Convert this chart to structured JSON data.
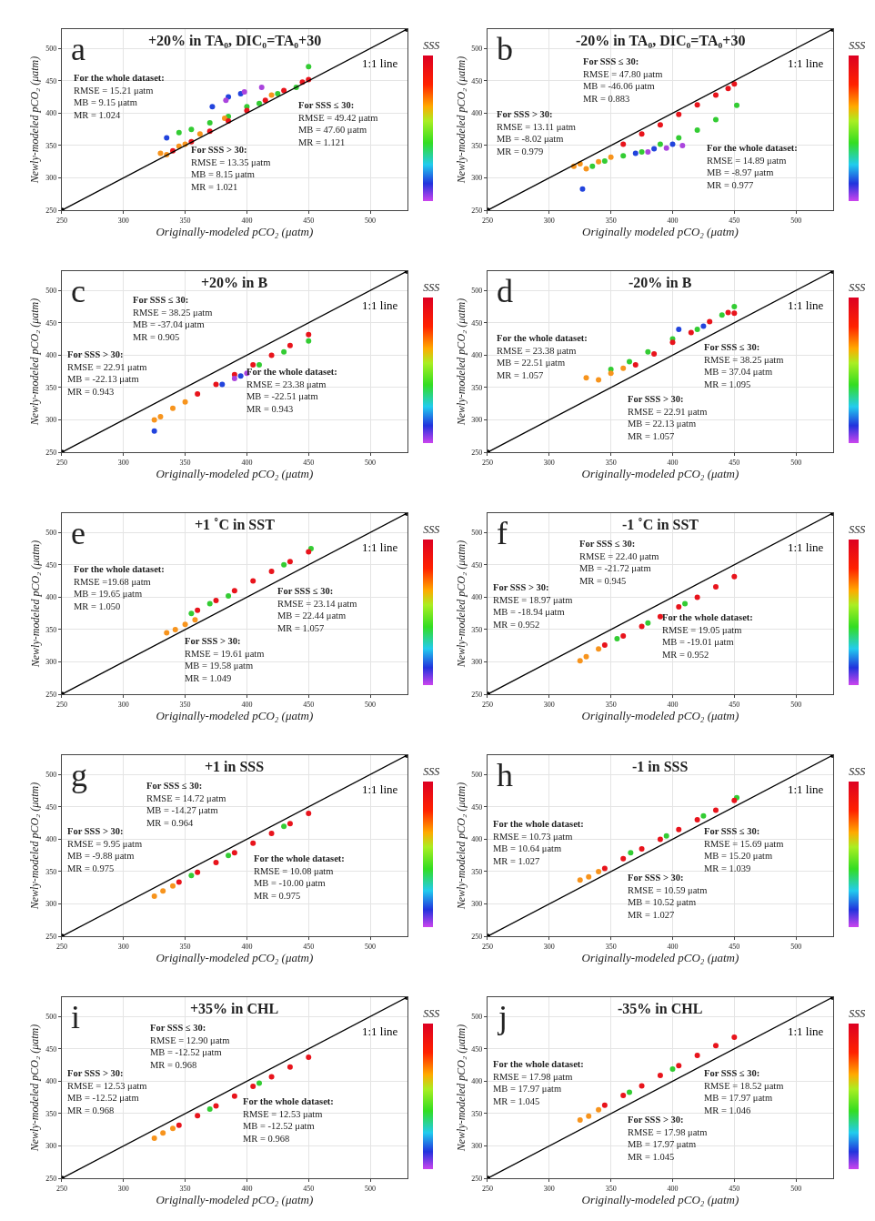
{
  "chart_data": [
    {
      "type": "scatter",
      "title": "+20% in TA₀, DIC₀=TA₀+30",
      "xlabel": "Originally-modeled pCO₂ (μatm)",
      "ylabel": "Newly-modeled pCO₂ (μatm)",
      "clabel": "SSS",
      "xlim": [
        250,
        530
      ],
      "ylim": [
        250,
        530
      ],
      "xticks": [
        250,
        300,
        350,
        400,
        450,
        500
      ],
      "yticks": [
        250,
        300,
        350,
        400,
        450,
        500
      ],
      "grid": true,
      "marker": "circle",
      "annotations": [
        "a",
        "For the whole dataset:\nRMSE = 15.21 μatm\nMB = 9.15 μatm\nMR = 1.024",
        "For SSS ≤ 30:\nRMSE = 49.42 μatm\nMB = 47.60 μatm\nMR = 1.121",
        "For SSS > 30:\nRMSE = 13.35 μatm\nMB = 8.15 μatm\nMR = 1.021"
      ],
      "series": [
        {
          "color": "#33cc33",
          "x": [
            345,
            355,
            370,
            385,
            400,
            410,
            425,
            440,
            450
          ],
          "values": [
            370,
            375,
            385,
            395,
            410,
            415,
            430,
            440,
            472
          ]
        },
        {
          "color": "#f7941d",
          "x": [
            330,
            335,
            345,
            350,
            362,
            382,
            420
          ],
          "values": [
            338,
            336,
            349,
            352,
            368,
            392,
            428
          ]
        },
        {
          "color": "#e8141c",
          "x": [
            340,
            355,
            370,
            385,
            400,
            415,
            430,
            445,
            450
          ],
          "values": [
            342,
            356,
            372,
            388,
            404,
            420,
            435,
            448,
            452
          ]
        },
        {
          "color": "#2244dd",
          "x": [
            335,
            372,
            385,
            395
          ],
          "values": [
            362,
            410,
            425,
            430
          ]
        },
        {
          "color": "#aa44dd",
          "x": [
            383,
            398,
            412
          ],
          "values": [
            420,
            433,
            440
          ]
        },
        {
          "type": "line",
          "name": "1:1 line",
          "color": "#000000",
          "x": [
            250,
            530
          ],
          "values": [
            250,
            530
          ]
        }
      ]
    },
    {
      "type": "scatter",
      "title": "-20% in TA₀, DIC₀=TA₀+30",
      "xlabel": "Originally modeled pCO₂ (μatm)",
      "ylabel": "Newly-modeled pCO₂ (μatm)",
      "clabel": "SSS",
      "xlim": [
        250,
        530
      ],
      "ylim": [
        250,
        530
      ],
      "xticks": [
        250,
        300,
        350,
        400,
        450,
        500
      ],
      "yticks": [
        250,
        300,
        350,
        400,
        450,
        500
      ],
      "grid": true,
      "marker": "circle",
      "annotations": [
        "b",
        "For SSS ≤ 30:\nRMSE = 47.80 μatm\nMB = -46.06 μatm\nMR = 0.883",
        "For SSS > 30:\nRMSE = 13.11 μatm\nMB = -8.02 μatm\nMR = 0.979",
        "For the whole dataset:\nRMSE = 14.89 μatm\nMB = -8.97 μatm\nMR = 0.977"
      ],
      "series": [
        {
          "color": "#33cc33",
          "x": [
            335,
            345,
            360,
            375,
            390,
            405,
            420,
            435,
            452
          ],
          "values": [
            318,
            326,
            334,
            340,
            352,
            362,
            374,
            390,
            412
          ]
        },
        {
          "color": "#f7941d",
          "x": [
            320,
            325,
            330,
            340,
            350
          ],
          "values": [
            318,
            322,
            314,
            325,
            332
          ]
        },
        {
          "color": "#e8141c",
          "x": [
            360,
            375,
            390,
            405,
            420,
            435,
            445,
            450
          ],
          "values": [
            352,
            368,
            382,
            398,
            413,
            428,
            438,
            445
          ]
        },
        {
          "color": "#2244dd",
          "x": [
            327,
            370,
            385,
            400
          ],
          "values": [
            283,
            338,
            345,
            352
          ]
        },
        {
          "color": "#aa44dd",
          "x": [
            380,
            395,
            408
          ],
          "values": [
            340,
            346,
            350
          ]
        },
        {
          "type": "line",
          "name": "1:1 line",
          "color": "#000000",
          "x": [
            250,
            530
          ],
          "values": [
            250,
            530
          ]
        }
      ]
    },
    {
      "type": "scatter",
      "title": "+20% in B",
      "xlabel": "Originally-modeled pCO₂ (μatm)",
      "ylabel": "Newly-modeled pCO₂ (μatm)",
      "clabel": "SSS",
      "xlim": [
        250,
        530
      ],
      "ylim": [
        250,
        530
      ],
      "xticks": [
        250,
        300,
        350,
        400,
        450,
        500
      ],
      "yticks": [
        250,
        300,
        350,
        400,
        450,
        500
      ],
      "grid": true,
      "marker": "circle",
      "annotations": [
        "c",
        "For SSS ≤ 30:\nRMSE = 38.25 μatm\nMB = -37.04 μatm\nMR = 0.905",
        "For SSS > 30:\nRMSE = 22.91 μatm\nMB = -22.13 μatm\nMR = 0.943",
        "For the whole dataset:\nRMSE = 23.38 μatm\nMB = -22.51 μatm\nMR = 0.943"
      ],
      "series": [
        {
          "color": "#33cc33",
          "x": [
            410,
            430,
            450
          ],
          "values": [
            385,
            405,
            422
          ]
        },
        {
          "color": "#f7941d",
          "x": [
            325,
            330,
            340,
            350
          ],
          "values": [
            300,
            305,
            318,
            328
          ]
        },
        {
          "color": "#e8141c",
          "x": [
            360,
            375,
            390,
            405,
            420,
            435,
            450
          ],
          "values": [
            340,
            355,
            370,
            385,
            400,
            415,
            432
          ]
        },
        {
          "color": "#2244dd",
          "x": [
            325,
            380,
            395
          ],
          "values": [
            283,
            355,
            368
          ]
        },
        {
          "color": "#aa44dd",
          "x": [
            390,
            400
          ],
          "values": [
            364,
            372
          ]
        },
        {
          "type": "line",
          "name": "1:1 line",
          "color": "#000000",
          "x": [
            250,
            530
          ],
          "values": [
            250,
            530
          ]
        }
      ]
    },
    {
      "type": "scatter",
      "title": "-20% in B",
      "xlabel": "Originally-modeled pCO₂ (μatm)",
      "ylabel": "Newly-modeled pCO₂ (μatm)",
      "clabel": "SSS",
      "xlim": [
        250,
        530
      ],
      "ylim": [
        250,
        530
      ],
      "xticks": [
        250,
        300,
        350,
        400,
        450,
        500
      ],
      "yticks": [
        250,
        300,
        350,
        400,
        450,
        500
      ],
      "grid": true,
      "marker": "circle",
      "annotations": [
        "d",
        "For the whole dataset:\nRMSE = 23.38 μatm\nMB = 22.51 μatm\nMR = 1.057",
        "For SSS ≤ 30:\nRMSE = 38.25 μatm\nMB = 37.04 μatm\nMR = 1.095",
        "For SSS > 30:\nRMSE = 22.91 μatm\nMB = 22.13 μatm\nMR = 1.057"
      ],
      "series": [
        {
          "color": "#33cc33",
          "x": [
            350,
            365,
            380,
            400,
            420,
            440,
            450
          ],
          "values": [
            378,
            390,
            405,
            425,
            440,
            462,
            475
          ]
        },
        {
          "color": "#f7941d",
          "x": [
            330,
            340,
            350,
            360
          ],
          "values": [
            365,
            362,
            372,
            380
          ]
        },
        {
          "color": "#e8141c",
          "x": [
            370,
            385,
            400,
            415,
            430,
            445,
            450
          ],
          "values": [
            385,
            402,
            420,
            435,
            452,
            466,
            465
          ]
        },
        {
          "color": "#2244dd",
          "x": [
            405,
            425
          ],
          "values": [
            440,
            445
          ]
        },
        {
          "type": "line",
          "name": "1:1 line",
          "color": "#000000",
          "x": [
            250,
            530
          ],
          "values": [
            250,
            530
          ]
        }
      ]
    },
    {
      "type": "scatter",
      "title": "+1 ˚C in SST",
      "xlabel": "Originally-modeled pCO₂ (μatm)",
      "ylabel": "Newly-modeled pCO₂ (μatm)",
      "clabel": "SSS",
      "xlim": [
        250,
        530
      ],
      "ylim": [
        250,
        530
      ],
      "xticks": [
        250,
        300,
        350,
        400,
        450,
        500
      ],
      "yticks": [
        250,
        300,
        350,
        400,
        450,
        500
      ],
      "grid": true,
      "marker": "circle",
      "annotations": [
        "e",
        "For the whole dataset:\nRMSE =19.68 μatm\nMB = 19.65 μatm\nMR = 1.050",
        "For SSS ≤ 30:\nRMSE = 23.14 μatm\nMB = 22.44 μatm\nMR = 1.057",
        "For SSS > 30:\nRMSE = 19.61 μatm\nMB = 19.58 μatm\nMR = 1.049"
      ],
      "series": [
        {
          "color": "#33cc33",
          "x": [
            355,
            370,
            385,
            430,
            452
          ],
          "values": [
            375,
            390,
            402,
            450,
            475
          ]
        },
        {
          "color": "#f7941d",
          "x": [
            335,
            342,
            350,
            358
          ],
          "values": [
            345,
            350,
            358,
            365
          ]
        },
        {
          "color": "#e8141c",
          "x": [
            360,
            375,
            390,
            405,
            420,
            435,
            450
          ],
          "values": [
            380,
            395,
            410,
            425,
            440,
            455,
            470
          ]
        },
        {
          "type": "line",
          "name": "1:1 line",
          "color": "#000000",
          "x": [
            250,
            530
          ],
          "values": [
            250,
            530
          ]
        }
      ]
    },
    {
      "type": "scatter",
      "title": "-1 ˚C in SST",
      "xlabel": "Originally-modeled pCO₂ (μatm)",
      "ylabel": "Newly-modeled pCO₂ (μatm)",
      "clabel": "SSS",
      "xlim": [
        250,
        530
      ],
      "ylim": [
        250,
        530
      ],
      "xticks": [
        250,
        300,
        350,
        400,
        450,
        500
      ],
      "yticks": [
        250,
        300,
        350,
        400,
        450,
        500
      ],
      "grid": true,
      "marker": "circle",
      "annotations": [
        "f",
        "For SSS ≤ 30:\nRMSE = 22.40 μatm\nMB = -21.72 μatm\nMR = 0.945",
        "For SSS > 30:\nRMSE = 18.97 μatm\nMB = -18.94 μatm\nMR = 0.952",
        "For the whole dataset:\nRMSE = 19.05 μatm\nMB = -19.01 μatm\nMR = 0.952"
      ],
      "series": [
        {
          "color": "#33cc33",
          "x": [
            355,
            380,
            410
          ],
          "values": [
            336,
            360,
            390
          ]
        },
        {
          "color": "#f7941d",
          "x": [
            325,
            330,
            340
          ],
          "values": [
            302,
            308,
            320
          ]
        },
        {
          "color": "#e8141c",
          "x": [
            345,
            360,
            375,
            390,
            405,
            420,
            435,
            450
          ],
          "values": [
            326,
            340,
            355,
            370,
            385,
            400,
            416,
            432
          ]
        },
        {
          "type": "line",
          "name": "1:1 line",
          "color": "#000000",
          "x": [
            250,
            530
          ],
          "values": [
            250,
            530
          ]
        }
      ]
    },
    {
      "type": "scatter",
      "title": "+1 in SSS",
      "xlabel": "Originally-modeled pCO₂ (μatm)",
      "ylabel": "Newly-modeled pCO₂ (μatm)",
      "clabel": "SSS",
      "xlim": [
        250,
        530
      ],
      "ylim": [
        250,
        530
      ],
      "xticks": [
        250,
        300,
        350,
        400,
        450,
        500
      ],
      "yticks": [
        250,
        300,
        350,
        400,
        450,
        500
      ],
      "grid": true,
      "marker": "circle",
      "annotations": [
        "g",
        "For SSS ≤ 30:\nRMSE = 14.72 μatm\nMB = -14.27 μatm\nMR = 0.964",
        "For SSS > 30:\nRMSE = 9.95 μatm\nMB = -9.88 μatm\nMR = 0.975",
        "For the whole dataset:\nRMSE = 10.08 μatm\nMB = -10.00 μatm\nMR = 0.975"
      ],
      "series": [
        {
          "color": "#33cc33",
          "x": [
            355,
            385,
            430
          ],
          "values": [
            344,
            375,
            420
          ]
        },
        {
          "color": "#f7941d",
          "x": [
            325,
            332,
            340
          ],
          "values": [
            312,
            320,
            328
          ]
        },
        {
          "color": "#e8141c",
          "x": [
            345,
            360,
            375,
            390,
            405,
            420,
            435,
            450
          ],
          "values": [
            334,
            349,
            364,
            379,
            394,
            409,
            424,
            440
          ]
        },
        {
          "type": "line",
          "name": "1:1 line",
          "color": "#000000",
          "x": [
            250,
            530
          ],
          "values": [
            250,
            530
          ]
        }
      ]
    },
    {
      "type": "scatter",
      "title": "-1 in SSS",
      "xlabel": "Originally-modeled pCO₂ (μatm)",
      "ylabel": "Newly-modeled pCO₂ (μatm)",
      "clabel": "SSS",
      "xlim": [
        250,
        530
      ],
      "ylim": [
        250,
        530
      ],
      "xticks": [
        250,
        300,
        350,
        400,
        450,
        500
      ],
      "yticks": [
        250,
        300,
        350,
        400,
        450,
        500
      ],
      "grid": true,
      "marker": "circle",
      "annotations": [
        "h",
        "For the whole dataset:\nRMSE = 10.73 μatm\nMB = 10.64 μatm\nMR = 1.027",
        "For SSS ≤ 30:\nRMSE = 15.69 μatm\nMB = 15.20 μatm\nMR = 1.039",
        "For SSS > 30:\nRMSE = 10.59 μatm\nMB = 10.52 μatm\nMR = 1.027"
      ],
      "series": [
        {
          "color": "#33cc33",
          "x": [
            366,
            395,
            425,
            452
          ],
          "values": [
            379,
            405,
            436,
            464
          ]
        },
        {
          "color": "#f7941d",
          "x": [
            325,
            332,
            340
          ],
          "values": [
            337,
            342,
            350
          ]
        },
        {
          "color": "#e8141c",
          "x": [
            345,
            360,
            375,
            390,
            405,
            420,
            435,
            450
          ],
          "values": [
            355,
            370,
            385,
            400,
            415,
            430,
            445,
            460
          ]
        },
        {
          "type": "line",
          "name": "1:1 line",
          "color": "#000000",
          "x": [
            250,
            530
          ],
          "values": [
            250,
            530
          ]
        }
      ]
    },
    {
      "type": "scatter",
      "title": "+35% in CHL",
      "xlabel": "Originally-modeled pCO₂ (μatm)",
      "ylabel": "Newly-modeled pCO₂ (μatm)",
      "clabel": "SSS",
      "xlim": [
        250,
        530
      ],
      "ylim": [
        250,
        530
      ],
      "xticks": [
        250,
        300,
        350,
        400,
        450,
        500
      ],
      "yticks": [
        250,
        300,
        350,
        400,
        450,
        500
      ],
      "grid": true,
      "marker": "circle",
      "annotations": [
        "i",
        "For SSS ≤ 30:\nRMSE = 12.90 μatm\nMB = -12.52 μatm\nMR = 0.968",
        "For SSS > 30:\nRMSE = 12.53 μatm\nMB = -12.52 μatm\nMR = 0.968",
        "For the whole dataset:\nRMSE = 12.53 μatm\nMB = -12.52 μatm\nMR = 0.968"
      ],
      "series": [
        {
          "color": "#33cc33",
          "x": [
            370,
            410
          ],
          "values": [
            357,
            397
          ]
        },
        {
          "color": "#f7941d",
          "x": [
            325,
            332,
            340
          ],
          "values": [
            312,
            320,
            327
          ]
        },
        {
          "color": "#e8141c",
          "x": [
            345,
            360,
            375,
            390,
            405,
            420,
            435,
            450
          ],
          "values": [
            332,
            347,
            362,
            377,
            392,
            407,
            422,
            437
          ]
        },
        {
          "type": "line",
          "name": "1:1 line",
          "color": "#000000",
          "x": [
            250,
            530
          ],
          "values": [
            250,
            530
          ]
        }
      ]
    },
    {
      "type": "scatter",
      "title": "-35% in CHL",
      "xlabel": "Originally-modeled pCO₂ (μatm)",
      "ylabel": "Newly-modeled pCO₂ (μatm)",
      "clabel": "SSS",
      "xlim": [
        250,
        530
      ],
      "ylim": [
        250,
        530
      ],
      "xticks": [
        250,
        300,
        350,
        400,
        450,
        500
      ],
      "yticks": [
        250,
        300,
        350,
        400,
        450,
        500
      ],
      "grid": true,
      "marker": "circle",
      "annotations": [
        "j",
        "For the whole dataset:\nRMSE = 17.98 μatm\nMB = 17.97 μatm\nMR = 1.045",
        "For SSS ≤ 30:\nRMSE = 18.52 μatm\nMB = 17.97 μatm\nMR = 1.046",
        "For SSS > 30:\nRMSE = 17.98 μatm\nMB = 17.97 μatm\nMR = 1.045"
      ],
      "series": [
        {
          "color": "#33cc33",
          "x": [
            365,
            400
          ],
          "values": [
            383,
            419
          ]
        },
        {
          "color": "#f7941d",
          "x": [
            325,
            332,
            340
          ],
          "values": [
            340,
            346,
            356
          ]
        },
        {
          "color": "#e8141c",
          "x": [
            345,
            360,
            375,
            390,
            405,
            420,
            435,
            450
          ],
          "values": [
            363,
            378,
            393,
            409,
            424,
            440,
            455,
            468
          ]
        },
        {
          "type": "line",
          "name": "1:1 line",
          "color": "#000000",
          "x": [
            250,
            530
          ],
          "values": [
            250,
            530
          ]
        }
      ]
    }
  ]
}
